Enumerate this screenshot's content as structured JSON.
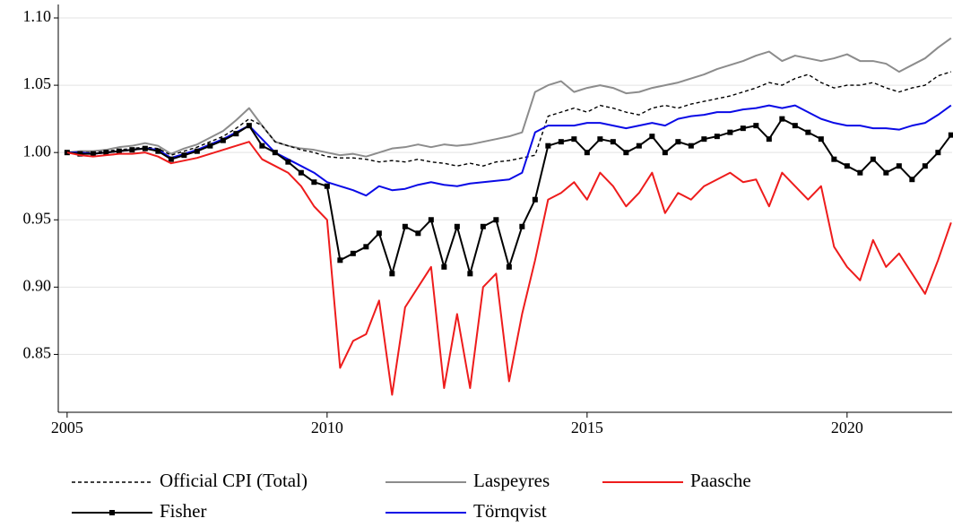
{
  "chart_data": {
    "type": "line",
    "x": [
      2005,
      2005.25,
      2005.5,
      2005.75,
      2006,
      2006.25,
      2006.5,
      2006.75,
      2007,
      2007.25,
      2007.5,
      2007.75,
      2008,
      2008.25,
      2008.5,
      2008.75,
      2009,
      2009.25,
      2009.5,
      2009.75,
      2010,
      2010.25,
      2010.5,
      2010.75,
      2011,
      2011.25,
      2011.5,
      2011.75,
      2012,
      2012.25,
      2012.5,
      2012.75,
      2013,
      2013.25,
      2013.5,
      2013.75,
      2014,
      2014.25,
      2014.5,
      2014.75,
      2015,
      2015.25,
      2015.5,
      2015.75,
      2016,
      2016.25,
      2016.5,
      2016.75,
      2017,
      2017.25,
      2017.5,
      2017.75,
      2018,
      2018.25,
      2018.5,
      2018.75,
      2019,
      2019.25,
      2019.5,
      2019.75,
      2020,
      2020.25,
      2020.5,
      2020.75,
      2021,
      2021.25,
      2021.5,
      2021.75,
      2022
    ],
    "xlim": [
      2004.83,
      2022.02
    ],
    "xticks": [
      2005,
      2010,
      2015,
      2020
    ],
    "ylim": [
      0.807,
      1.11
    ],
    "yticks": [
      0.85,
      {
        "value": 0.9,
        "label": "0.90"
      },
      0.95,
      {
        "value": 1,
        "label": "1.00"
      },
      1.05,
      {
        "value": 1.1,
        "label": "1.10"
      }
    ],
    "grid": true,
    "series": [
      {
        "name": "Official CPI (Total)",
        "color": "#000000",
        "style": "dashed",
        "values": [
          1.0,
          1.0,
          1.0,
          1.001,
          1.002,
          1.003,
          1.004,
          1.003,
          0.998,
          1.001,
          1.004,
          1.008,
          1.012,
          1.018,
          1.025,
          1.02,
          1.008,
          1.005,
          1.002,
          1.0,
          0.997,
          0.996,
          0.996,
          0.995,
          0.993,
          0.994,
          0.993,
          0.995,
          0.993,
          0.992,
          0.99,
          0.992,
          0.99,
          0.993,
          0.994,
          0.996,
          0.998,
          1.027,
          1.03,
          1.033,
          1.03,
          1.035,
          1.033,
          1.03,
          1.028,
          1.033,
          1.035,
          1.033,
          1.036,
          1.038,
          1.04,
          1.042,
          1.045,
          1.048,
          1.052,
          1.05,
          1.055,
          1.058,
          1.052,
          1.048,
          1.05,
          1.05,
          1.052,
          1.048,
          1.045,
          1.048,
          1.05,
          1.057,
          1.06
        ]
      },
      {
        "name": "Laspeyres",
        "color": "#8c8c8c",
        "style": "solid",
        "values": [
          1.0,
          1.001,
          1.001,
          1.002,
          1.004,
          1.005,
          1.007,
          1.005,
          0.999,
          1.003,
          1.006,
          1.011,
          1.016,
          1.024,
          1.033,
          1.02,
          1.008,
          1.005,
          1.003,
          1.002,
          1.0,
          0.998,
          0.999,
          0.997,
          1.0,
          1.003,
          1.004,
          1.006,
          1.004,
          1.006,
          1.005,
          1.006,
          1.008,
          1.01,
          1.012,
          1.015,
          1.045,
          1.05,
          1.053,
          1.045,
          1.048,
          1.05,
          1.048,
          1.044,
          1.045,
          1.048,
          1.05,
          1.052,
          1.055,
          1.058,
          1.062,
          1.065,
          1.068,
          1.072,
          1.075,
          1.068,
          1.072,
          1.07,
          1.068,
          1.07,
          1.073,
          1.068,
          1.068,
          1.066,
          1.06,
          1.065,
          1.07,
          1.078,
          1.085
        ]
      },
      {
        "name": "Paasche",
        "color": "#ee1c1c",
        "style": "solid",
        "values": [
          1.0,
          0.998,
          0.997,
          0.998,
          0.999,
          0.999,
          1.0,
          0.997,
          0.992,
          0.994,
          0.996,
          0.999,
          1.002,
          1.005,
          1.008,
          0.995,
          0.99,
          0.985,
          0.975,
          0.96,
          0.95,
          0.84,
          0.86,
          0.865,
          0.89,
          0.82,
          0.885,
          0.9,
          0.915,
          0.825,
          0.88,
          0.825,
          0.9,
          0.91,
          0.83,
          0.88,
          0.92,
          0.965,
          0.97,
          0.978,
          0.965,
          0.985,
          0.975,
          0.96,
          0.97,
          0.985,
          0.955,
          0.97,
          0.965,
          0.975,
          0.98,
          0.985,
          0.978,
          0.98,
          0.96,
          0.985,
          0.975,
          0.965,
          0.975,
          0.93,
          0.915,
          0.905,
          0.935,
          0.915,
          0.925,
          0.91,
          0.895,
          0.92,
          0.948
        ]
      },
      {
        "name": "Fisher",
        "color": "#000000",
        "style": "solid",
        "marker": "square",
        "values": [
          1.0,
          0.999,
          0.999,
          1.0,
          1.001,
          1.002,
          1.003,
          1.001,
          0.995,
          0.998,
          1.001,
          1.005,
          1.009,
          1.014,
          1.02,
          1.005,
          1.0,
          0.993,
          0.985,
          0.978,
          0.975,
          0.92,
          0.925,
          0.93,
          0.94,
          0.91,
          0.945,
          0.94,
          0.95,
          0.915,
          0.945,
          0.91,
          0.945,
          0.95,
          0.915,
          0.945,
          0.965,
          1.005,
          1.008,
          1.01,
          1.0,
          1.01,
          1.008,
          1.0,
          1.005,
          1.012,
          1.0,
          1.008,
          1.005,
          1.01,
          1.012,
          1.015,
          1.018,
          1.02,
          1.01,
          1.025,
          1.02,
          1.015,
          1.01,
          0.995,
          0.99,
          0.985,
          0.995,
          0.985,
          0.99,
          0.98,
          0.99,
          1.0,
          1.013
        ]
      },
      {
        "name": "Törnqvist",
        "color": "#0a0ae6",
        "style": "solid",
        "values": [
          1.0,
          1.0,
          0.999,
          1.0,
          1.001,
          1.002,
          1.003,
          1.002,
          0.996,
          0.999,
          1.002,
          1.006,
          1.01,
          1.015,
          1.02,
          1.01,
          1.0,
          0.995,
          0.99,
          0.985,
          0.978,
          0.975,
          0.972,
          0.968,
          0.975,
          0.972,
          0.973,
          0.976,
          0.978,
          0.976,
          0.975,
          0.977,
          0.978,
          0.979,
          0.98,
          0.985,
          1.015,
          1.02,
          1.02,
          1.02,
          1.022,
          1.022,
          1.02,
          1.018,
          1.02,
          1.022,
          1.02,
          1.025,
          1.027,
          1.028,
          1.03,
          1.03,
          1.032,
          1.033,
          1.035,
          1.033,
          1.035,
          1.03,
          1.025,
          1.022,
          1.02,
          1.02,
          1.018,
          1.018,
          1.017,
          1.02,
          1.022,
          1.028,
          1.035
        ]
      }
    ]
  }
}
